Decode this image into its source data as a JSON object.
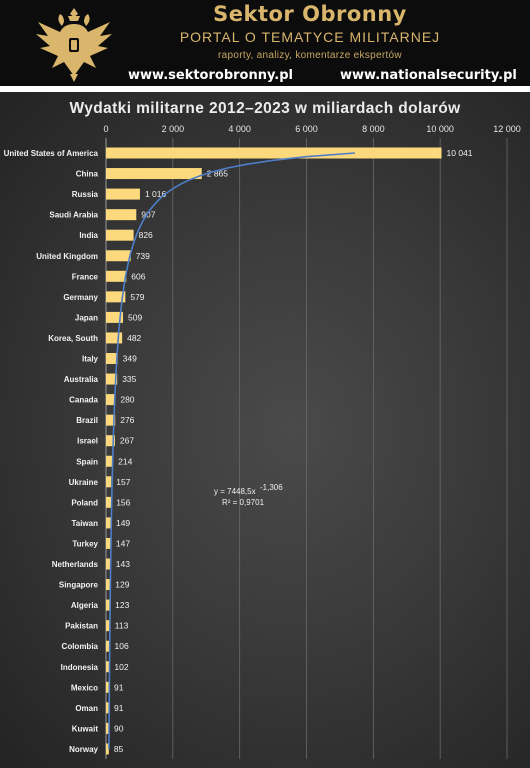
{
  "header": {
    "brand_title": "Sektor Obronny",
    "brand_subtitle": "PORTAL O TEMATYCE MILITARNEJ",
    "brand_tagline": "raporty, analizy, komentarze ekspertów",
    "url_left": "www.sektorobronny.pl",
    "url_right": "www.nationalsecurity.pl",
    "logo_icon": "double-headed-eagle-icon"
  },
  "colors": {
    "bar": "#fbd97c",
    "trendline": "#4f7ec8",
    "gold": "#d9b66c",
    "gridline": "#6a6a6a"
  },
  "chart_data": {
    "type": "bar",
    "orientation": "horizontal",
    "title": "Wydatki militarne 2012–2023 w miliardach dolarów",
    "xlabel": "",
    "ylabel": "",
    "xlim": [
      0,
      12000
    ],
    "x_ticks": [
      0,
      2000,
      4000,
      6000,
      8000,
      10000,
      12000
    ],
    "x_tick_labels": [
      "0",
      "2 000",
      "4 000",
      "6 000",
      "8 000",
      "10 000",
      "12 000"
    ],
    "grid": true,
    "axis_position": "top",
    "categories": [
      "United States of America",
      "China",
      "Russia",
      "Saudi Arabia",
      "India",
      "United Kingdom",
      "France",
      "Germany",
      "Japan",
      "Korea, South",
      "Italy",
      "Australia",
      "Canada",
      "Brazil",
      "Israel",
      "Spain",
      "Ukraine",
      "Poland",
      "Taiwan",
      "Turkey",
      "Netherlands",
      "Singapore",
      "Algeria",
      "Pakistan",
      "Colombia",
      "Indonesia",
      "Mexico",
      "Oman",
      "Kuwait",
      "Norway"
    ],
    "values": [
      10041,
      2865,
      1016,
      907,
      826,
      739,
      606,
      579,
      509,
      482,
      349,
      335,
      280,
      276,
      267,
      214,
      157,
      156,
      149,
      147,
      143,
      129,
      123,
      113,
      106,
      102,
      91,
      91,
      90,
      85
    ],
    "value_labels": [
      "10 041",
      "2 865",
      "1 016",
      "907",
      "826",
      "739",
      "606",
      "579",
      "509",
      "482",
      "349",
      "335",
      "280",
      "276",
      "267",
      "214",
      "157",
      "156",
      "149",
      "147",
      "143",
      "129",
      "123",
      "113",
      "106",
      "102",
      "91",
      "91",
      "90",
      "85"
    ],
    "trendline": {
      "type": "power",
      "a": 7448.5,
      "b": -1.306,
      "equation_text": "y = 7448,5x",
      "equation_exponent": "-1,306",
      "r2_text": "R² = 0,9701"
    }
  }
}
